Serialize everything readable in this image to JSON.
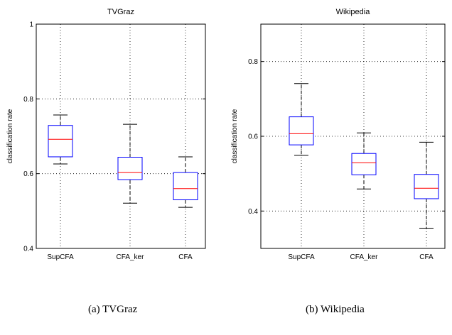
{
  "chart_data": [
    {
      "type": "box",
      "title": "TVGraz",
      "ylabel": "classification rate",
      "ylim": [
        0.4,
        1.0
      ],
      "yticks": [
        0.4,
        0.6,
        0.8,
        1.0
      ],
      "ytick_labels": [
        "0.4",
        "0.6",
        "0.8",
        "1"
      ],
      "grid": true,
      "categories": [
        "SupCFA",
        "CFA_ker",
        "CFA"
      ],
      "boxes": [
        {
          "whisker_low": 0.626,
          "q1": 0.645,
          "median": 0.692,
          "q3": 0.729,
          "whisker_high": 0.757
        },
        {
          "whisker_low": 0.521,
          "q1": 0.584,
          "median": 0.603,
          "q3": 0.644,
          "whisker_high": 0.732
        },
        {
          "whisker_low": 0.51,
          "q1": 0.53,
          "median": 0.56,
          "q3": 0.603,
          "whisker_high": 0.645
        }
      ],
      "caption": "(a) TVGraz"
    },
    {
      "type": "box",
      "title": "Wikipedia",
      "ylabel": "classification rate",
      "ylim": [
        0.3,
        0.9
      ],
      "yticks": [
        0.4,
        0.6,
        0.8
      ],
      "ytick_labels": [
        "0.4",
        "0.6",
        "0.8"
      ],
      "grid": true,
      "categories": [
        "SupCFA",
        "CFA_ker",
        "CFA"
      ],
      "boxes": [
        {
          "whisker_low": 0.549,
          "q1": 0.577,
          "median": 0.607,
          "q3": 0.652,
          "whisker_high": 0.741
        },
        {
          "whisker_low": 0.459,
          "q1": 0.497,
          "median": 0.529,
          "q3": 0.554,
          "whisker_high": 0.609
        },
        {
          "whisker_low": 0.354,
          "q1": 0.433,
          "median": 0.461,
          "q3": 0.498,
          "whisker_high": 0.584
        }
      ],
      "caption": "(b) Wikipedia"
    }
  ],
  "colors": {
    "box": "#0000ff",
    "median": "#ff0000",
    "whisker": "#000000",
    "grid": "#000000"
  }
}
